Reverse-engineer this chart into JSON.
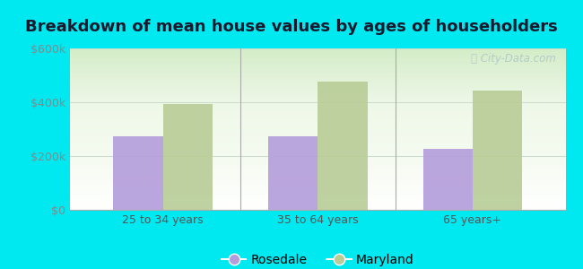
{
  "title": "Breakdown of mean house values by ages of householders",
  "categories": [
    "25 to 34 years",
    "35 to 64 years",
    "65 years+"
  ],
  "rosedale_values": [
    275000,
    272000,
    228000
  ],
  "maryland_values": [
    395000,
    478000,
    445000
  ],
  "rosedale_color": "#b39ddb",
  "maryland_color": "#b8cc96",
  "background_color": "#00e8f0",
  "ylim": [
    0,
    600000
  ],
  "yticks": [
    0,
    200000,
    400000,
    600000
  ],
  "ytick_labels": [
    "$0",
    "$200k",
    "$400k",
    "$600k"
  ],
  "bar_width": 0.32,
  "legend_labels": [
    "Rosedale",
    "Maryland"
  ],
  "title_fontsize": 13,
  "tick_fontsize": 9,
  "legend_fontsize": 10,
  "watermark_text": "ⓘ City-Data.com"
}
